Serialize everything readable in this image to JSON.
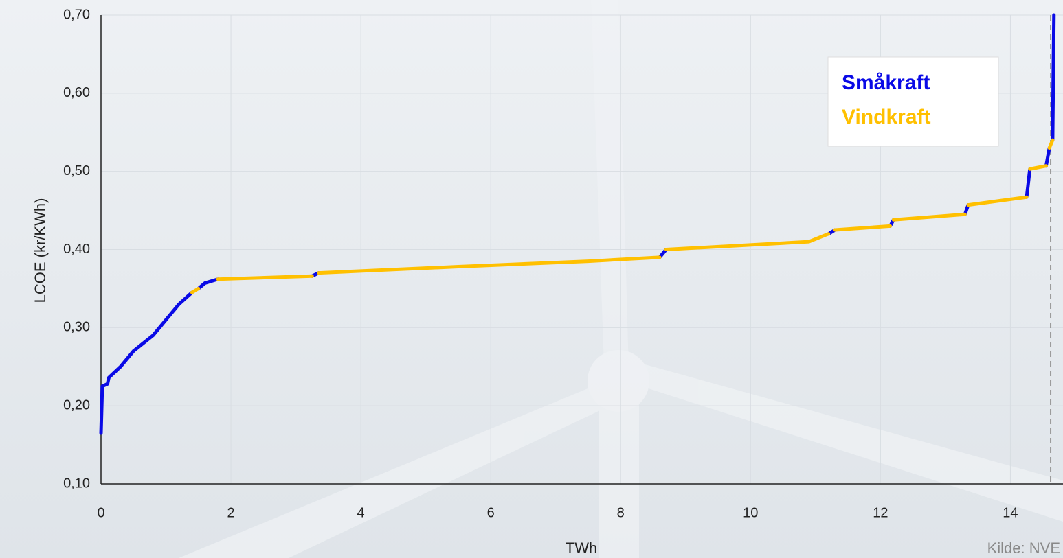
{
  "chart_data": {
    "type": "line",
    "xlabel": "TWh",
    "ylabel": "LCOE (kr/KWh)",
    "source": "Kilde: NVE",
    "xlim": [
      0,
      14.81
    ],
    "ylim": [
      0.1,
      0.7
    ],
    "xticks": [
      0,
      2,
      4,
      6,
      8,
      10,
      12,
      14
    ],
    "yticks": [
      {
        "value": 0.1,
        "label": "0,10"
      },
      {
        "value": 0.2,
        "label": "0,20"
      },
      {
        "value": 0.3,
        "label": "0,30"
      },
      {
        "value": 0.4,
        "label": "0,40"
      },
      {
        "value": 0.5,
        "label": "0,50"
      },
      {
        "value": 0.6,
        "label": "0,60"
      },
      {
        "value": 0.7,
        "label": "0,70"
      }
    ],
    "grid": true,
    "legend": "upper right",
    "reference_line_x": 14.62,
    "series": [
      {
        "name": "Småkraft",
        "color": "#0a0ae6",
        "x": [
          0,
          0.02,
          0.1,
          0.12,
          0.3,
          0.5,
          0.8,
          1.0,
          1.2,
          1.4,
          null,
          1.5,
          1.6,
          1.8,
          null,
          3.25,
          3.35,
          null,
          8.6,
          8.7,
          null,
          11.2,
          11.3,
          null,
          12.15,
          12.2,
          null,
          13.3,
          13.35,
          null,
          14.25,
          14.3,
          null,
          14.55,
          14.6,
          null,
          14.65,
          14.67
        ],
        "values": [
          0.165,
          0.225,
          0.228,
          0.236,
          0.25,
          0.27,
          0.29,
          0.31,
          0.33,
          0.345,
          null,
          0.35,
          0.357,
          0.362,
          null,
          0.366,
          0.37,
          null,
          0.39,
          0.4,
          null,
          0.42,
          0.425,
          null,
          0.43,
          0.438,
          null,
          0.445,
          0.457,
          null,
          0.467,
          0.503,
          null,
          0.507,
          0.53,
          null,
          0.54,
          0.7
        ]
      },
      {
        "name": "Vindkraft",
        "color": "#ffc000",
        "x": [
          1.4,
          1.5,
          null,
          1.8,
          3.25,
          null,
          3.35,
          5.5,
          7.5,
          8.6,
          null,
          8.7,
          10.9,
          11.2,
          null,
          11.3,
          12.15,
          null,
          12.2,
          13.3,
          null,
          13.35,
          14.25,
          null,
          14.3,
          14.55,
          null,
          14.6,
          14.65
        ],
        "values": [
          0.345,
          0.35,
          null,
          0.362,
          0.366,
          null,
          0.37,
          0.378,
          0.385,
          0.39,
          null,
          0.4,
          0.41,
          0.42,
          null,
          0.425,
          0.43,
          null,
          0.438,
          0.445,
          null,
          0.457,
          0.467,
          null,
          0.503,
          0.507,
          null,
          0.53,
          0.54
        ]
      }
    ]
  }
}
